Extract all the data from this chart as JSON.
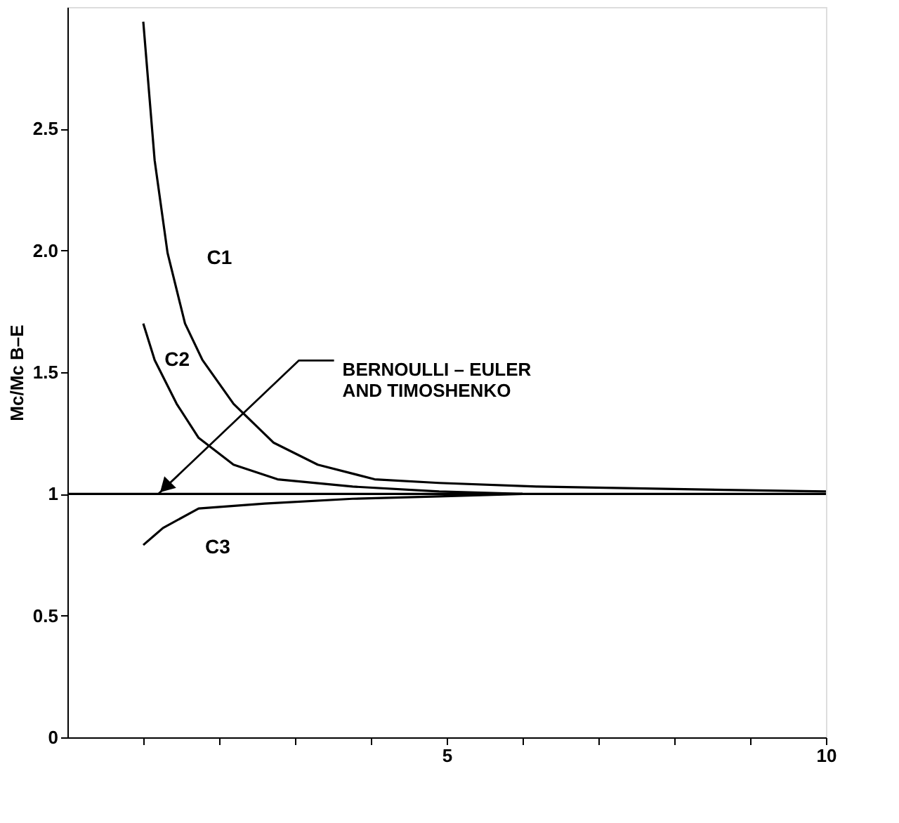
{
  "chart_data": {
    "type": "line",
    "ylabel": "Mc/Mc B–E",
    "xlim": [
      0,
      10
    ],
    "ylim": [
      0,
      3
    ],
    "xticks": [
      {
        "value": 1,
        "label": null
      },
      {
        "value": 2,
        "label": null
      },
      {
        "value": 3,
        "label": null
      },
      {
        "value": 4,
        "label": null
      },
      5,
      {
        "value": 6,
        "label": null
      },
      {
        "value": 7,
        "label": null
      },
      {
        "value": 8,
        "label": null
      },
      {
        "value": 9,
        "label": null
      },
      10
    ],
    "yticks": [
      0,
      0.5,
      1,
      1.5,
      {
        "value": 2,
        "label": "2.0"
      },
      2.5
    ],
    "grid": false,
    "marker": "none",
    "line_style": "solid",
    "series": [
      {
        "name": "C1",
        "color": "#000000",
        "x": [
          1,
          1.15,
          1.32,
          1.55,
          1.78,
          2.19,
          2.72,
          3.3,
          4.05,
          4.9,
          6.2,
          8,
          10
        ],
        "values": [
          2.94,
          2.37,
          1.99,
          1.7,
          1.55,
          1.37,
          1.21,
          1.12,
          1.06,
          1.045,
          1.03,
          1.02,
          1.01
        ]
      },
      {
        "name": "C2",
        "color": "#000000",
        "x": [
          1,
          1.15,
          1.44,
          1.73,
          2.19,
          2.77,
          3.76,
          4.9,
          6
        ],
        "values": [
          1.7,
          1.55,
          1.37,
          1.23,
          1.12,
          1.06,
          1.03,
          1.01,
          1.0
        ]
      },
      {
        "name": "C3",
        "color": "#000000",
        "x": [
          1,
          1.26,
          1.73,
          2.6,
          3.76,
          4.9,
          6
        ],
        "values": [
          0.79,
          0.86,
          0.94,
          0.96,
          0.98,
          0.99,
          1.0
        ]
      },
      {
        "color": "#000000",
        "x": [
          0,
          10
        ],
        "values": [
          1,
          1
        ]
      }
    ],
    "annotations": [
      {
        "text": "BERNOULLI – EULER\nAND TIMOSHENKO",
        "x": 1.2,
        "y": 1
      }
    ]
  }
}
